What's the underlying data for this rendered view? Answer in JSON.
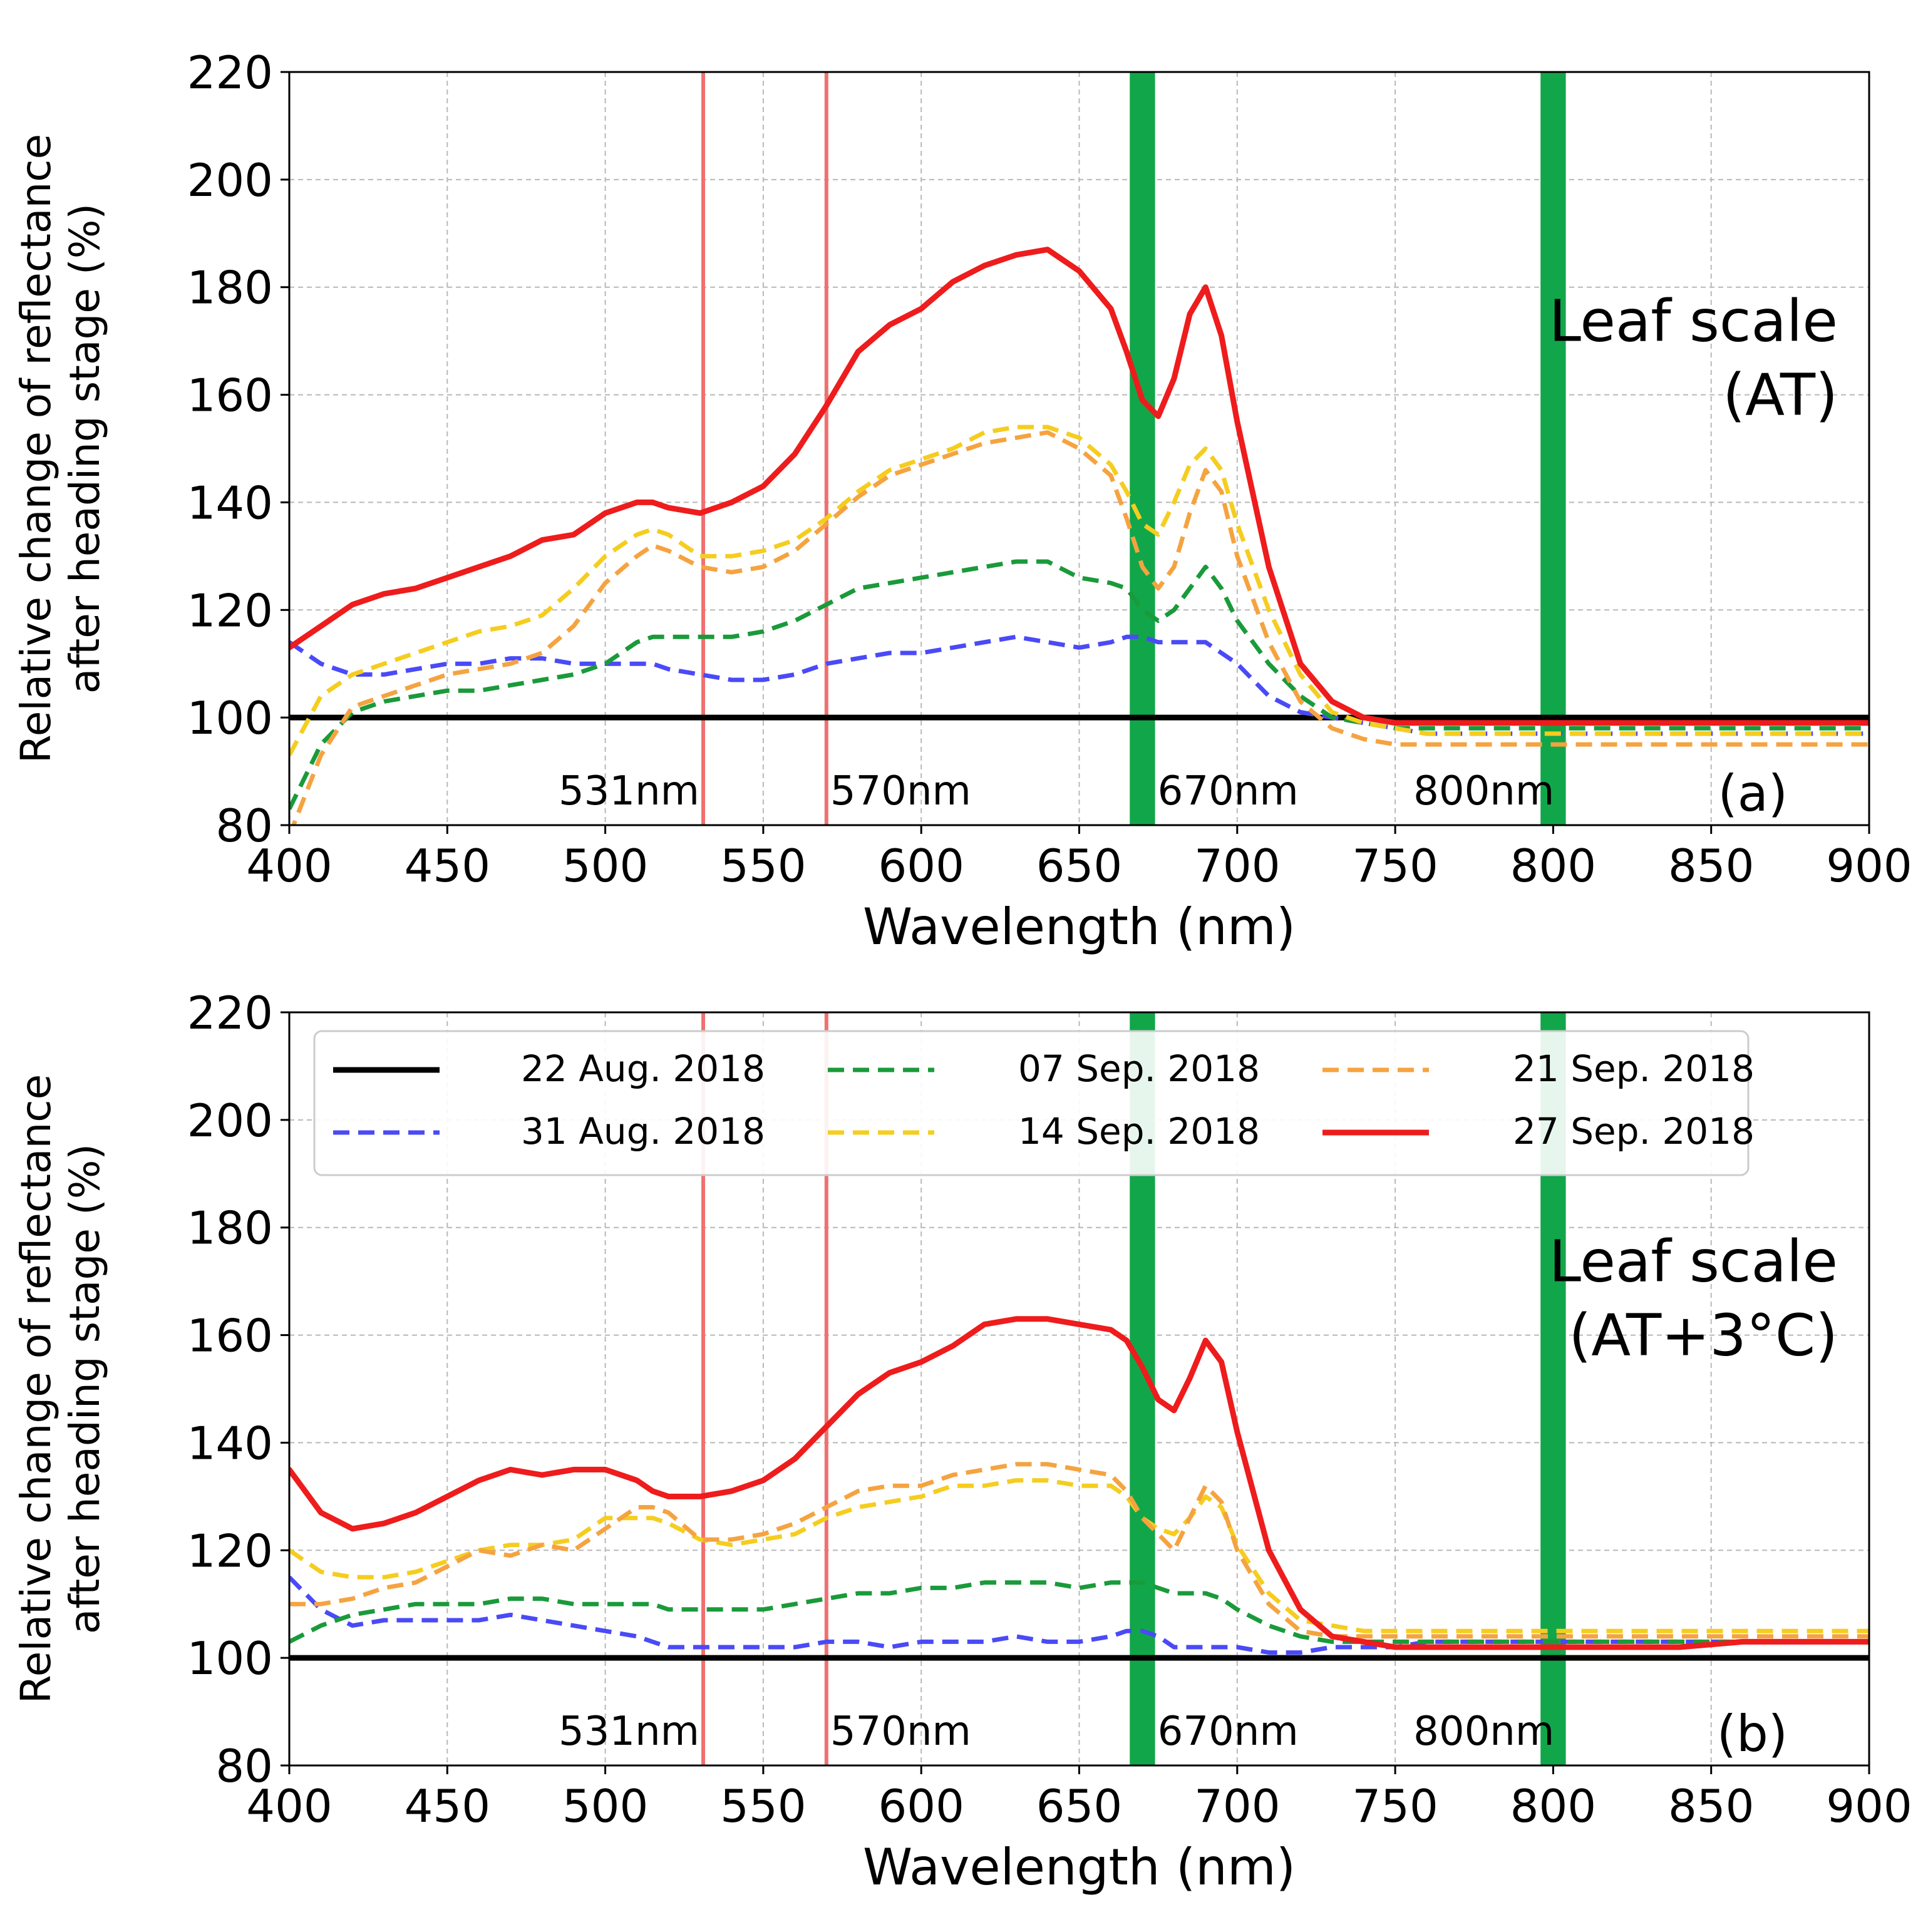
{
  "chart_data": [
    {
      "type": "line",
      "panel_id": "a",
      "title": "Leaf scale",
      "subtitle": "(AT)",
      "panel_label": "(a)",
      "xlabel": "Wavelength (nm)",
      "ylabel": [
        "Relative change of reflectance",
        "after heading stage (%)"
      ],
      "xlim": [
        400,
        900
      ],
      "ylim": [
        80,
        220
      ],
      "xticks": [
        400,
        450,
        500,
        550,
        600,
        650,
        700,
        750,
        800,
        850,
        900
      ],
      "yticks": [
        80,
        100,
        120,
        140,
        160,
        180,
        200,
        220
      ],
      "grid": true,
      "legend": null,
      "red_lines": [
        {
          "x": 531,
          "label": "531nm"
        },
        {
          "x": 570,
          "label": "570nm"
        }
      ],
      "green_bands": [
        {
          "x0": 666,
          "x1": 674,
          "label": "670nm"
        },
        {
          "x0": 796,
          "x1": 804,
          "label": "800nm"
        }
      ],
      "x": [
        400,
        410,
        420,
        430,
        440,
        450,
        460,
        470,
        480,
        490,
        500,
        510,
        515,
        520,
        530,
        540,
        550,
        560,
        570,
        580,
        590,
        600,
        610,
        620,
        630,
        640,
        650,
        660,
        665,
        670,
        675,
        680,
        685,
        690,
        695,
        700,
        710,
        720,
        730,
        740,
        750,
        760,
        780,
        800,
        820,
        840,
        860,
        880,
        900
      ],
      "series": [
        {
          "name": "22 Aug. 2018",
          "color": "#000000",
          "dash": "solid",
          "width": 9,
          "values": [
            100,
            100,
            100,
            100,
            100,
            100,
            100,
            100,
            100,
            100,
            100,
            100,
            100,
            100,
            100,
            100,
            100,
            100,
            100,
            100,
            100,
            100,
            100,
            100,
            100,
            100,
            100,
            100,
            100,
            100,
            100,
            100,
            100,
            100,
            100,
            100,
            100,
            100,
            100,
            100,
            100,
            100,
            100,
            100,
            100,
            100,
            100,
            100,
            100
          ]
        },
        {
          "name": "31 Aug. 2018",
          "color": "#4a4af7",
          "dash": "dashed",
          "width": 7,
          "values": [
            114,
            110,
            108,
            108,
            109,
            110,
            110,
            111,
            111,
            110,
            110,
            110,
            110,
            109,
            108,
            107,
            107,
            108,
            110,
            111,
            112,
            112,
            113,
            114,
            115,
            114,
            113,
            114,
            115,
            115,
            114,
            114,
            114,
            114,
            112,
            110,
            104,
            101,
            100,
            99,
            98,
            97,
            97,
            97,
            97,
            97,
            97,
            97,
            97
          ]
        },
        {
          "name": "07 Sep. 2018",
          "color": "#1a9a3a",
          "dash": "dashed",
          "width": 7,
          "values": [
            83,
            95,
            101,
            103,
            104,
            105,
            105,
            106,
            107,
            108,
            110,
            114,
            115,
            115,
            115,
            115,
            116,
            118,
            121,
            124,
            125,
            126,
            127,
            128,
            129,
            129,
            126,
            125,
            124,
            120,
            118,
            120,
            124,
            128,
            124,
            118,
            110,
            104,
            100,
            99,
            98,
            98,
            98,
            98,
            98,
            98,
            98,
            98,
            98
          ]
        },
        {
          "name": "14 Sep. 2018",
          "color": "#f5cd1f",
          "dash": "dashed",
          "width": 7,
          "values": [
            93,
            104,
            108,
            110,
            112,
            114,
            116,
            117,
            119,
            124,
            130,
            134,
            135,
            134,
            130,
            130,
            131,
            133,
            137,
            142,
            146,
            148,
            150,
            153,
            154,
            154,
            152,
            147,
            142,
            136,
            134,
            140,
            147,
            150,
            146,
            136,
            120,
            108,
            101,
            99,
            98,
            97,
            97,
            97,
            97,
            97,
            97,
            97,
            97
          ]
        },
        {
          "name": "21 Sep. 2018",
          "color": "#f5a340",
          "dash": "dashed",
          "width": 7,
          "values": [
            78,
            93,
            102,
            104,
            106,
            108,
            109,
            110,
            112,
            117,
            125,
            130,
            132,
            131,
            128,
            127,
            128,
            131,
            136,
            141,
            145,
            147,
            149,
            151,
            152,
            153,
            150,
            145,
            137,
            128,
            124,
            128,
            138,
            146,
            142,
            130,
            114,
            103,
            98,
            96,
            95,
            95,
            95,
            95,
            95,
            95,
            95,
            95,
            95
          ]
        },
        {
          "name": "27 Sep. 2018",
          "color": "#ee1c1c",
          "dash": "solid",
          "width": 9,
          "values": [
            113,
            117,
            121,
            123,
            124,
            126,
            128,
            130,
            133,
            134,
            138,
            140,
            140,
            139,
            138,
            140,
            143,
            149,
            158,
            168,
            173,
            176,
            181,
            184,
            186,
            187,
            183,
            176,
            168,
            159,
            156,
            163,
            175,
            180,
            171,
            155,
            128,
            110,
            103,
            100,
            99,
            99,
            99,
            99,
            99,
            99,
            99,
            99,
            99
          ]
        }
      ]
    },
    {
      "type": "line",
      "panel_id": "b",
      "title": "Leaf scale",
      "subtitle": "(AT+3°C)",
      "panel_label": "(b)",
      "xlabel": "Wavelength (nm)",
      "ylabel": [
        "Relative change of reflectance",
        "after heading stage (%)"
      ],
      "xlim": [
        400,
        900
      ],
      "ylim": [
        80,
        220
      ],
      "xticks": [
        400,
        450,
        500,
        550,
        600,
        650,
        700,
        750,
        800,
        850,
        900
      ],
      "yticks": [
        80,
        100,
        120,
        140,
        160,
        180,
        200,
        220
      ],
      "grid": true,
      "legend": "top-left",
      "red_lines": [
        {
          "x": 531,
          "label": "531nm"
        },
        {
          "x": 570,
          "label": "570nm"
        }
      ],
      "green_bands": [
        {
          "x0": 666,
          "x1": 674,
          "label": "670nm"
        },
        {
          "x0": 796,
          "x1": 804,
          "label": "800nm"
        }
      ],
      "x": [
        400,
        410,
        420,
        430,
        440,
        450,
        460,
        470,
        480,
        490,
        500,
        510,
        515,
        520,
        530,
        540,
        550,
        560,
        570,
        580,
        590,
        600,
        610,
        620,
        630,
        640,
        650,
        660,
        665,
        670,
        675,
        680,
        685,
        690,
        695,
        700,
        710,
        720,
        730,
        740,
        750,
        760,
        780,
        800,
        820,
        840,
        860,
        880,
        900
      ],
      "series": [
        {
          "name": "22 Aug. 2018",
          "color": "#000000",
          "dash": "solid",
          "width": 9,
          "values": [
            100,
            100,
            100,
            100,
            100,
            100,
            100,
            100,
            100,
            100,
            100,
            100,
            100,
            100,
            100,
            100,
            100,
            100,
            100,
            100,
            100,
            100,
            100,
            100,
            100,
            100,
            100,
            100,
            100,
            100,
            100,
            100,
            100,
            100,
            100,
            100,
            100,
            100,
            100,
            100,
            100,
            100,
            100,
            100,
            100,
            100,
            100,
            100,
            100
          ]
        },
        {
          "name": "31 Aug. 2018",
          "color": "#4a4af7",
          "dash": "dashed",
          "width": 7,
          "values": [
            115,
            109,
            106,
            107,
            107,
            107,
            107,
            108,
            107,
            106,
            105,
            104,
            103,
            102,
            102,
            102,
            102,
            102,
            103,
            103,
            102,
            103,
            103,
            103,
            104,
            103,
            103,
            104,
            105,
            105,
            104,
            102,
            102,
            102,
            102,
            102,
            101,
            101,
            102,
            102,
            102,
            103,
            103,
            103,
            103,
            103,
            103,
            103,
            103
          ]
        },
        {
          "name": "07 Sep. 2018",
          "color": "#1a9a3a",
          "dash": "dashed",
          "width": 7,
          "values": [
            103,
            106,
            108,
            109,
            110,
            110,
            110,
            111,
            111,
            110,
            110,
            110,
            110,
            109,
            109,
            109,
            109,
            110,
            111,
            112,
            112,
            113,
            113,
            114,
            114,
            114,
            113,
            114,
            114,
            114,
            113,
            112,
            112,
            112,
            111,
            109,
            106,
            104,
            103,
            103,
            103,
            103,
            103,
            103,
            103,
            103,
            103,
            103,
            103
          ]
        },
        {
          "name": "14 Sep. 2018",
          "color": "#f5cd1f",
          "dash": "dashed",
          "width": 7,
          "values": [
            120,
            116,
            115,
            115,
            116,
            118,
            120,
            121,
            121,
            122,
            126,
            126,
            126,
            125,
            122,
            121,
            122,
            123,
            126,
            128,
            129,
            130,
            132,
            132,
            133,
            133,
            132,
            132,
            130,
            126,
            124,
            123,
            126,
            130,
            128,
            121,
            112,
            107,
            106,
            105,
            105,
            105,
            105,
            105,
            105,
            105,
            105,
            105,
            105
          ]
        },
        {
          "name": "21 Sep. 2018",
          "color": "#f5a340",
          "dash": "dashed",
          "width": 7,
          "values": [
            110,
            110,
            111,
            113,
            114,
            117,
            120,
            119,
            121,
            120,
            124,
            128,
            128,
            127,
            122,
            122,
            123,
            125,
            128,
            131,
            132,
            132,
            134,
            135,
            136,
            136,
            135,
            134,
            131,
            126,
            123,
            120,
            126,
            132,
            129,
            120,
            110,
            105,
            104,
            104,
            104,
            104,
            104,
            104,
            104,
            104,
            104,
            104,
            104
          ]
        },
        {
          "name": "27 Sep. 2018",
          "color": "#ee1c1c",
          "dash": "solid",
          "width": 9,
          "values": [
            135,
            127,
            124,
            125,
            127,
            130,
            133,
            135,
            134,
            135,
            135,
            133,
            131,
            130,
            130,
            131,
            133,
            137,
            143,
            149,
            153,
            155,
            158,
            162,
            163,
            163,
            162,
            161,
            159,
            154,
            148,
            146,
            152,
            159,
            155,
            142,
            120,
            109,
            104,
            103,
            102,
            102,
            102,
            102,
            102,
            102,
            103,
            103,
            103
          ]
        }
      ]
    }
  ]
}
